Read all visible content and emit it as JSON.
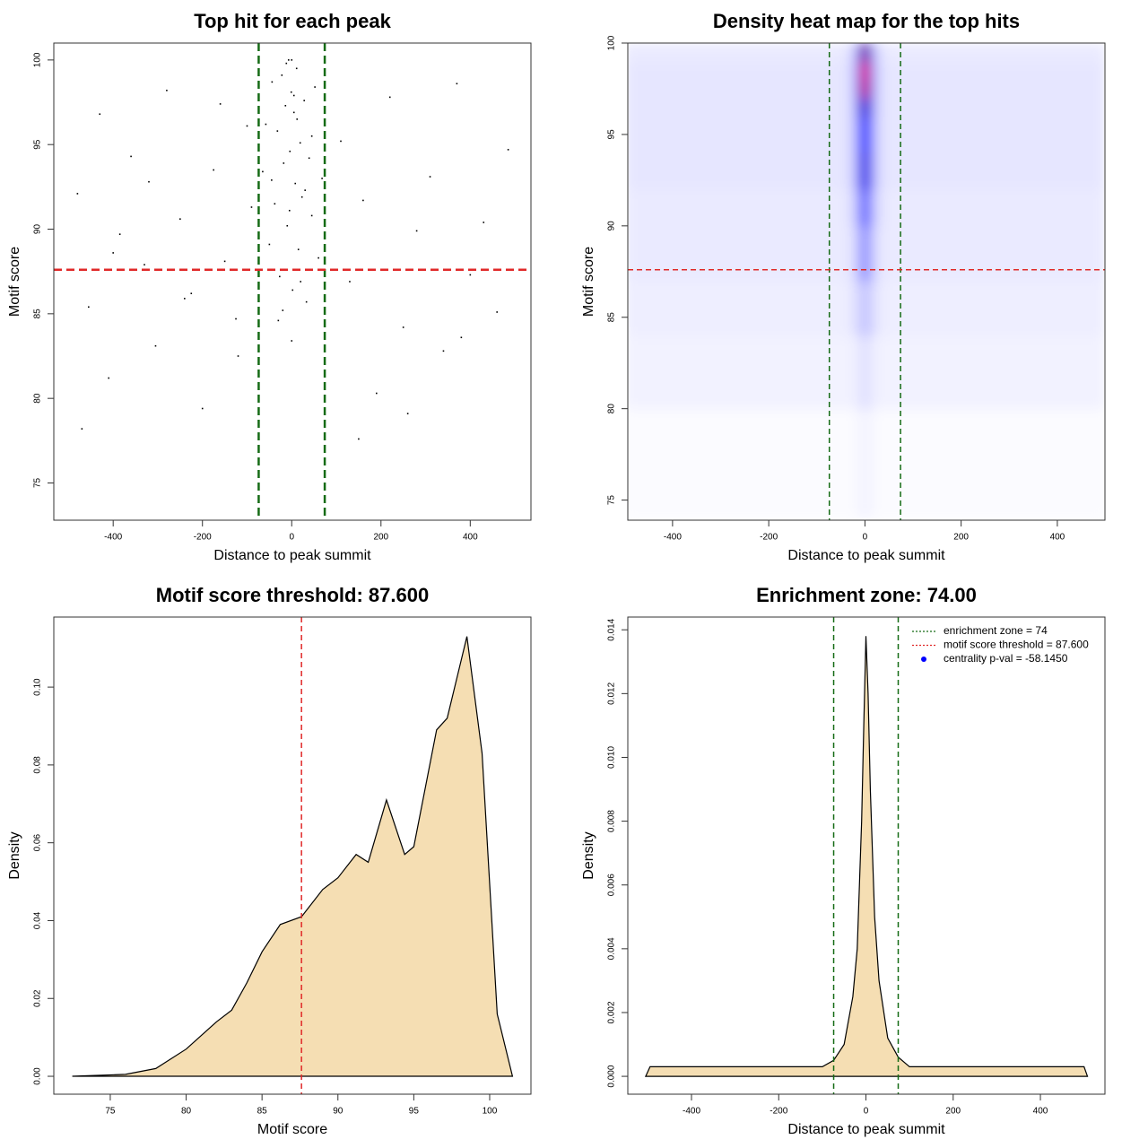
{
  "chart_data": [
    {
      "type": "scatter",
      "title": "Top hit for each peak",
      "xlabel": "Distance to peak summit",
      "ylabel": "Motif score",
      "x": [
        -480,
        -455,
        -430,
        -410,
        -385,
        -360,
        -330,
        -305,
        -280,
        -250,
        -225,
        -200,
        -175,
        -150,
        -125,
        -100,
        -90,
        -120,
        -160,
        -240,
        -320,
        -400,
        -470,
        110,
        130,
        160,
        190,
        220,
        250,
        280,
        310,
        340,
        370,
        400,
        430,
        460,
        485,
        150,
        260,
        380,
        -65,
        -58,
        -50,
        -44,
        -38,
        -32,
        -27,
        -22,
        -18,
        -14,
        -10,
        -7,
        -4,
        -1,
        2,
        5,
        8,
        11,
        15,
        19,
        23,
        28,
        33,
        39,
        45,
        52,
        60,
        68,
        -30,
        -12,
        0,
        12,
        30,
        -20,
        20,
        -5,
        5,
        -45,
        45,
        0
      ],
      "y": [
        92.1,
        85.4,
        96.8,
        81.2,
        89.7,
        94.3,
        87.9,
        83.1,
        98.2,
        90.6,
        86.2,
        79.4,
        93.5,
        88.1,
        84.7,
        96.1,
        91.3,
        82.5,
        97.4,
        85.9,
        92.8,
        88.6,
        78.2,
        95.2,
        86.9,
        91.7,
        80.3,
        97.8,
        84.2,
        89.9,
        93.1,
        82.8,
        98.6,
        87.3,
        90.4,
        85.1,
        94.7,
        77.6,
        79.1,
        83.6,
        93.4,
        96.2,
        89.1,
        98.7,
        91.5,
        95.8,
        87.2,
        99.1,
        93.9,
        97.3,
        90.2,
        100,
        94.6,
        98.1,
        86.4,
        96.9,
        92.7,
        99.5,
        88.8,
        95.1,
        91.9,
        97.6,
        85.7,
        94.2,
        90.8,
        98.4,
        88.3,
        93.0,
        84.6,
        99.8,
        100,
        96.5,
        92.3,
        85.2,
        86.9,
        91.1,
        97.9,
        92.9,
        95.5,
        83.4
      ],
      "color": "#000000",
      "xlim": [
        -533,
        536
      ],
      "ylim": [
        72.8,
        101
      ],
      "xticks": [
        -400,
        -200,
        0,
        200,
        400
      ],
      "yticks": [
        75,
        80,
        85,
        90,
        95,
        100
      ],
      "vlines": [
        -74,
        74
      ],
      "vline_color": "#156b15",
      "hlines": [
        87.6
      ],
      "hline_color": "#e02828"
    },
    {
      "type": "heatmap",
      "title": "Density heat map for the top hits",
      "xlabel": "Distance to peak summit",
      "ylabel": "Motif score",
      "x_edges": [
        -500,
        -40,
        -20,
        -8,
        8,
        20,
        40,
        500
      ],
      "y_edges": [
        74,
        80,
        84,
        87,
        90,
        92,
        94,
        96,
        97,
        98,
        99,
        100
      ],
      "z": [
        [
          0.01,
          0.01,
          0.02,
          0.03,
          0.02,
          0.01,
          0.01
        ],
        [
          0.03,
          0.03,
          0.05,
          0.08,
          0.05,
          0.03,
          0.03
        ],
        [
          0.04,
          0.05,
          0.1,
          0.15,
          0.1,
          0.05,
          0.04
        ],
        [
          0.05,
          0.06,
          0.15,
          0.3,
          0.15,
          0.06,
          0.05
        ],
        [
          0.05,
          0.07,
          0.2,
          0.45,
          0.2,
          0.07,
          0.05
        ],
        [
          0.06,
          0.08,
          0.3,
          0.65,
          0.3,
          0.08,
          0.06
        ],
        [
          0.06,
          0.08,
          0.3,
          0.55,
          0.3,
          0.08,
          0.06
        ],
        [
          0.06,
          0.08,
          0.35,
          0.7,
          0.35,
          0.08,
          0.06
        ],
        [
          0.06,
          0.08,
          0.4,
          0.95,
          0.4,
          0.08,
          0.06
        ],
        [
          0.06,
          0.08,
          0.4,
          1.0,
          0.4,
          0.08,
          0.06
        ],
        [
          0.05,
          0.07,
          0.3,
          0.8,
          0.3,
          0.07,
          0.05
        ]
      ],
      "colors": [
        "#ffffff",
        "#0000ff",
        "#ff0000"
      ],
      "xlim": [
        -493,
        499
      ],
      "ylim": [
        73.9,
        100
      ],
      "xticks": [
        -400,
        -200,
        0,
        200,
        400
      ],
      "yticks": [
        75,
        80,
        85,
        90,
        95,
        100
      ],
      "vlines": [
        -74,
        74
      ],
      "vline_color": "#156b15",
      "hlines": [
        87.6
      ],
      "hline_color": "#e02828"
    },
    {
      "type": "area",
      "title": "Motif score threshold: 87.600",
      "xlabel": "Motif score",
      "ylabel": "Density",
      "x": [
        72.5,
        76,
        78,
        80,
        82,
        83,
        84,
        85,
        86.2,
        87.6,
        89,
        90,
        91.2,
        92,
        93.2,
        94.4,
        95,
        96.5,
        97.2,
        98.5,
        99.5,
        100.5,
        101.5
      ],
      "y": [
        0,
        0.0005,
        0.002,
        0.007,
        0.014,
        0.017,
        0.024,
        0.032,
        0.039,
        0.041,
        0.048,
        0.051,
        0.057,
        0.055,
        0.071,
        0.057,
        0.059,
        0.089,
        0.092,
        0.113,
        0.083,
        0.016,
        0
      ],
      "color": "#f5deb3",
      "xlim": [
        71.28,
        102.72
      ],
      "ylim": [
        -0.0046,
        0.118
      ],
      "xticks": [
        75,
        80,
        85,
        90,
        95,
        100
      ],
      "yticks": [
        {
          "value": 0,
          "label": "0.00"
        },
        {
          "value": 0.02,
          "label": "0.02"
        },
        {
          "value": 0.04,
          "label": "0.04"
        },
        {
          "value": 0.06,
          "label": "0.06"
        },
        {
          "value": 0.08,
          "label": "0.08"
        },
        {
          "value": 0.1,
          "label": "0.10"
        }
      ],
      "vlines": [
        87.6
      ],
      "vline_color": "#e02828"
    },
    {
      "type": "area",
      "title": "Enrichment zone: 74.00",
      "xlabel": "Distance to peak summit",
      "ylabel": "Density",
      "x": [
        -505,
        -495,
        -450,
        -400,
        -300,
        -200,
        -100,
        -74,
        -50,
        -30,
        -20,
        -10,
        -5,
        0,
        5,
        10,
        20,
        30,
        50,
        74,
        100,
        200,
        300,
        400,
        500,
        508
      ],
      "y": [
        0,
        0.0003,
        0.0003,
        0.0003,
        0.0003,
        0.0003,
        0.0003,
        0.0005,
        0.001,
        0.0025,
        0.004,
        0.008,
        0.011,
        0.0138,
        0.012,
        0.009,
        0.005,
        0.003,
        0.0012,
        0.0006,
        0.0003,
        0.0003,
        0.0003,
        0.0003,
        0.0003,
        0
      ],
      "color": "#f5deb3",
      "xlim": [
        -546,
        548
      ],
      "ylim": [
        -0.00056,
        0.0144
      ],
      "xticks": [
        -400,
        -200,
        0,
        200,
        400
      ],
      "yticks": [
        {
          "value": 0,
          "label": "0.000"
        },
        {
          "value": 0.002,
          "label": "0.002"
        },
        {
          "value": 0.004,
          "label": "0.004"
        },
        {
          "value": 0.006,
          "label": "0.006"
        },
        {
          "value": 0.008,
          "label": "0.008"
        },
        {
          "value": 0.01,
          "label": "0.010"
        },
        {
          "value": 0.012,
          "label": "0.012"
        },
        {
          "value": 0.014,
          "label": "0.014"
        }
      ],
      "vlines": [
        -74,
        74
      ],
      "vline_color": "#156b15",
      "legend": [
        {
          "name": "enrichment zone = 74",
          "color": "#156b15",
          "style": "line"
        },
        {
          "name": "motif score threshold = 87.600",
          "color": "#e02828",
          "style": "line"
        },
        {
          "name": "centrality p-val = -58.1450",
          "color": "#0000ff",
          "style": "point"
        }
      ]
    }
  ]
}
